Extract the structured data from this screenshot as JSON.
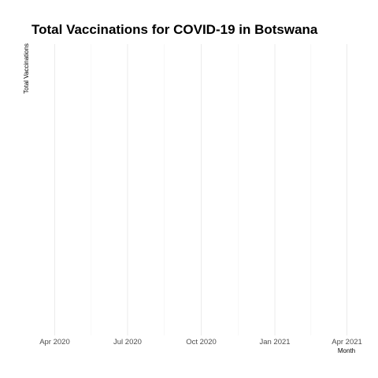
{
  "chart_data": {
    "type": "line",
    "title": "Total Vaccinations for COVID-19 in Botswana",
    "xlabel": "Month",
    "ylabel": "Total Vaccinations",
    "x_ticks": [
      "Apr 2020",
      "Jul 2020",
      "Oct 2020",
      "Jan 2021",
      "Apr 2021"
    ],
    "x_tick_dates": [
      "2020-04-01",
      "2020-07-01",
      "2020-10-01",
      "2021-01-01",
      "2021-04-01"
    ],
    "xlim": [
      "2020-03-03",
      "2021-04-30"
    ],
    "x": [],
    "series": [
      {
        "name": "",
        "values": []
      }
    ],
    "grid": true,
    "colors": {
      "grid": "#ebebeb",
      "text": "#000000",
      "tick_text": "#4d4d4d"
    }
  }
}
